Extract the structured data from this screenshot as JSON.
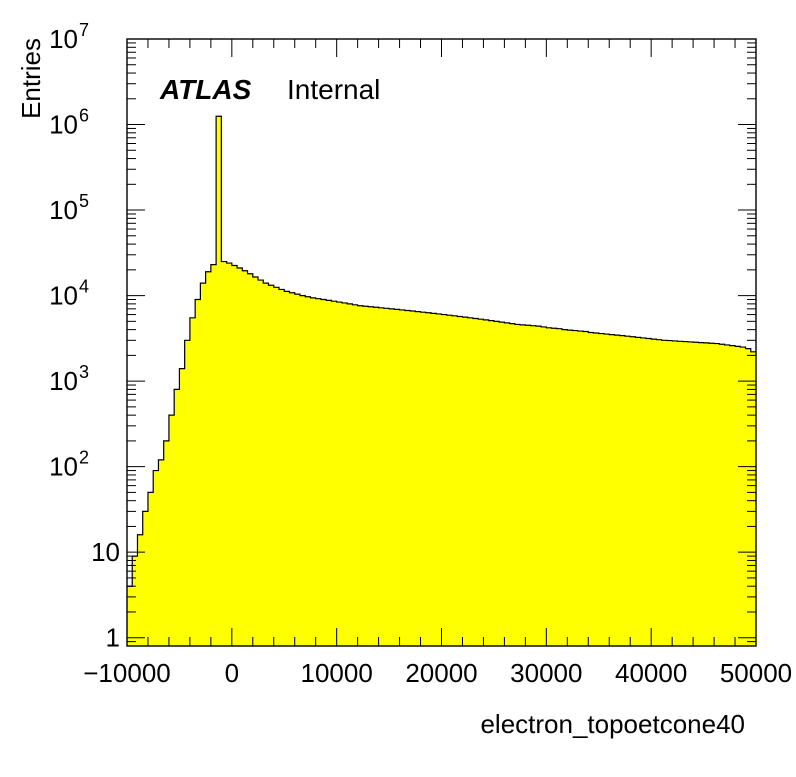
{
  "chart_data": {
    "type": "bar",
    "histogram": true,
    "xlabel": "electron_topoetcone40",
    "ylabel": "Entries",
    "xlim": [
      -10000,
      50000
    ],
    "ylim": [
      0.8,
      10000000
    ],
    "log_y": true,
    "grid": false,
    "fill_color": "#ffff00",
    "line_color": "#000000",
    "annotations": {
      "experiment": "ATLAS",
      "status": "Internal"
    },
    "x_ticks": [
      {
        "value": -10000,
        "label": "−10000"
      },
      {
        "value": 0,
        "label": "0"
      },
      {
        "value": 10000,
        "label": "10000"
      },
      {
        "value": 20000,
        "label": "20000"
      },
      {
        "value": 30000,
        "label": "30000"
      },
      {
        "value": 40000,
        "label": "40000"
      },
      {
        "value": 50000,
        "label": "50000"
      }
    ],
    "y_ticks": [
      {
        "value": 1,
        "base": "1",
        "exp": ""
      },
      {
        "value": 10,
        "base": "10",
        "exp": ""
      },
      {
        "value": 100,
        "base": "10",
        "exp": "2"
      },
      {
        "value": 1000,
        "base": "10",
        "exp": "3"
      },
      {
        "value": 10000,
        "base": "10",
        "exp": "4"
      },
      {
        "value": 100000,
        "base": "10",
        "exp": "5"
      },
      {
        "value": 1000000,
        "base": "10",
        "exp": "6"
      },
      {
        "value": 10000000,
        "base": "10",
        "exp": "7"
      }
    ],
    "bin_width": 500,
    "bin_values": [
      4,
      9,
      16,
      30,
      50,
      90,
      120,
      200,
      400,
      800,
      1400,
      3000,
      5500,
      9000,
      14000,
      19000,
      23000,
      1250000,
      25000,
      24000,
      22500,
      21000,
      19500,
      18000,
      16500,
      15200,
      14000,
      13200,
      12500,
      11800,
      11200,
      10800,
      10400,
      10000,
      9700,
      9400,
      9200,
      9000,
      8800,
      8600,
      8400,
      8200,
      8000,
      7800,
      7600,
      7500,
      7400,
      7300,
      7200,
      7100,
      7000,
      6900,
      6800,
      6700,
      6600,
      6500,
      6400,
      6300,
      6200,
      6100,
      6000,
      5900,
      5800,
      5700,
      5600,
      5500,
      5400,
      5300,
      5200,
      5100,
      5000,
      4900,
      4800,
      4700,
      4600,
      4550,
      4500,
      4450,
      4400,
      4300,
      4200,
      4150,
      4100,
      4000,
      3950,
      3900,
      3850,
      3800,
      3700,
      3650,
      3600,
      3550,
      3500,
      3450,
      3400,
      3350,
      3300,
      3250,
      3200,
      3150,
      3100,
      3050,
      3000,
      2980,
      2950,
      2920,
      2900,
      2870,
      2850,
      2820,
      2800,
      2770,
      2750,
      2700,
      2650,
      2600,
      2550,
      2500,
      2400,
      2200
    ]
  }
}
